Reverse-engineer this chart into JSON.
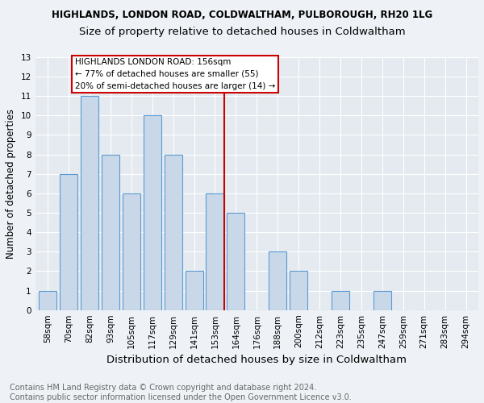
{
  "title": "HIGHLANDS, LONDON ROAD, COLDWALTHAM, PULBOROUGH, RH20 1LG",
  "subtitle": "Size of property relative to detached houses in Coldwaltham",
  "xlabel": "Distribution of detached houses by size in Coldwaltham",
  "ylabel": "Number of detached properties",
  "bar_labels": [
    "58sqm",
    "70sqm",
    "82sqm",
    "93sqm",
    "105sqm",
    "117sqm",
    "129sqm",
    "141sqm",
    "153sqm",
    "164sqm",
    "176sqm",
    "188sqm",
    "200sqm",
    "212sqm",
    "223sqm",
    "235sqm",
    "247sqm",
    "259sqm",
    "271sqm",
    "283sqm",
    "294sqm"
  ],
  "bar_values": [
    1,
    7,
    11,
    8,
    6,
    10,
    8,
    2,
    6,
    5,
    0,
    3,
    2,
    0,
    1,
    0,
    1,
    0,
    0,
    0,
    0
  ],
  "bar_color": "#c8d8e8",
  "bar_edge_color": "#5b9bd5",
  "highlight_line_color": "#cc0000",
  "annotation_text": "HIGHLANDS LONDON ROAD: 156sqm\n← 77% of detached houses are smaller (55)\n20% of semi-detached houses are larger (14) →",
  "annotation_box_color": "#cc0000",
  "ylim": [
    0,
    13
  ],
  "yticks": [
    0,
    1,
    2,
    3,
    4,
    5,
    6,
    7,
    8,
    9,
    10,
    11,
    12,
    13
  ],
  "footnote": "Contains HM Land Registry data © Crown copyright and database right 2024.\nContains public sector information licensed under the Open Government Licence v3.0.",
  "bg_color": "#eef2f6",
  "plot_bg_color": "#e4eaf0",
  "grid_color": "#ffffff",
  "title_fontsize": 8.5,
  "subtitle_fontsize": 9.5,
  "xlabel_fontsize": 9.5,
  "ylabel_fontsize": 8.5,
  "tick_fontsize": 7.5,
  "annotation_fontsize": 7.5,
  "footnote_fontsize": 7.0
}
